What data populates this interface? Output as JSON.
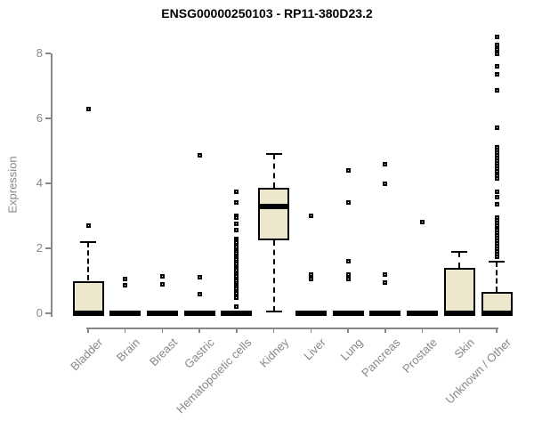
{
  "title": "ENSG00000250103 - RP11-380D23.2",
  "colors": {
    "box_fill": "#EDE8CD",
    "box_border": "#000000",
    "axis": "#878787",
    "axis_text": "#878787",
    "title_text": "#000000"
  },
  "chart_data": {
    "type": "boxplot",
    "title": "ENSG00000250103 - RP11-380D23.2",
    "xlabel": "",
    "ylabel": "Expression",
    "yticks": [
      0,
      2,
      4,
      6,
      8
    ],
    "ylim": [
      0,
      8.6
    ],
    "grid": false,
    "categories": [
      "Bladder",
      "Brain",
      "Breast",
      "Gastric",
      "Hematopoietic cells",
      "Kidney",
      "Liver",
      "Lung",
      "Pancreas",
      "Prostate",
      "Skin",
      "Unknown / Other"
    ],
    "series": [
      {
        "name": "Bladder",
        "q1": 0,
        "median": 0,
        "q3": 1.0,
        "whisker_low": 0,
        "whisker_high": 2.2,
        "outliers": [
          2.7,
          6.3
        ]
      },
      {
        "name": "Brain",
        "q1": 0,
        "median": 0,
        "q3": 0,
        "whisker_low": 0,
        "whisker_high": 0,
        "outliers": [
          0.85,
          1.05
        ]
      },
      {
        "name": "Breast",
        "q1": 0,
        "median": 0,
        "q3": 0,
        "whisker_low": 0,
        "whisker_high": 0,
        "outliers": [
          0.9,
          1.15
        ]
      },
      {
        "name": "Gastric",
        "q1": 0,
        "median": 0,
        "q3": 0,
        "whisker_low": 0,
        "whisker_high": 0,
        "outliers": [
          0.6,
          1.1,
          4.85
        ]
      },
      {
        "name": "Hematopoietic cells",
        "q1": 0,
        "median": 0,
        "q3": 0,
        "whisker_low": 0,
        "whisker_high": 0,
        "outliers": [
          3.75,
          3.4,
          3.0,
          2.95,
          2.75,
          2.55,
          2.3,
          2.23,
          2.17,
          2.1,
          2.04,
          1.97,
          1.91,
          1.84,
          1.78,
          1.71,
          1.65,
          1.58,
          1.52,
          1.45,
          1.39,
          1.32,
          1.26,
          1.19,
          1.13,
          1.06,
          1.0,
          0.93,
          0.87,
          0.8,
          0.74,
          0.67,
          0.61,
          0.54,
          0.48,
          0.2
        ]
      },
      {
        "name": "Kidney",
        "q1": 2.25,
        "median": 3.3,
        "q3": 3.85,
        "whisker_low": 0.05,
        "whisker_high": 4.9,
        "outliers": []
      },
      {
        "name": "Liver",
        "q1": 0,
        "median": 0,
        "q3": 0,
        "whisker_low": 0,
        "whisker_high": 0,
        "outliers": [
          1.05,
          1.2,
          3.0
        ]
      },
      {
        "name": "Lung",
        "q1": 0,
        "median": 0,
        "q3": 0,
        "whisker_low": 0,
        "whisker_high": 0,
        "outliers": [
          1.05,
          1.2,
          1.6,
          3.4,
          4.4
        ]
      },
      {
        "name": "Pancreas",
        "q1": 0,
        "median": 0,
        "q3": 0,
        "whisker_low": 0,
        "whisker_high": 0,
        "outliers": [
          0.95,
          1.2,
          4.0,
          4.6
        ]
      },
      {
        "name": "Prostate",
        "q1": 0,
        "median": 0,
        "q3": 0,
        "whisker_low": 0,
        "whisker_high": 0,
        "outliers": [
          2.8
        ]
      },
      {
        "name": "Skin",
        "q1": 0,
        "median": 0,
        "q3": 1.4,
        "whisker_low": 0,
        "whisker_high": 1.9,
        "outliers": []
      },
      {
        "name": "Unknown / Other",
        "q1": 0,
        "median": 0,
        "q3": 0.65,
        "whisker_low": 0,
        "whisker_high": 1.6,
        "outliers": [
          8.5,
          8.25,
          8.12,
          8.0,
          7.6,
          7.35,
          6.85,
          5.7,
          5.1,
          5.02,
          4.94,
          4.86,
          4.78,
          4.7,
          4.62,
          4.54,
          4.46,
          4.38,
          4.3,
          4.22,
          4.14,
          3.75,
          3.58,
          3.35,
          2.95,
          2.87,
          2.79,
          2.71,
          2.63,
          2.55,
          2.47,
          2.39,
          2.31,
          2.23,
          2.15,
          2.07,
          1.99,
          1.91,
          1.83,
          1.75
        ]
      }
    ]
  }
}
